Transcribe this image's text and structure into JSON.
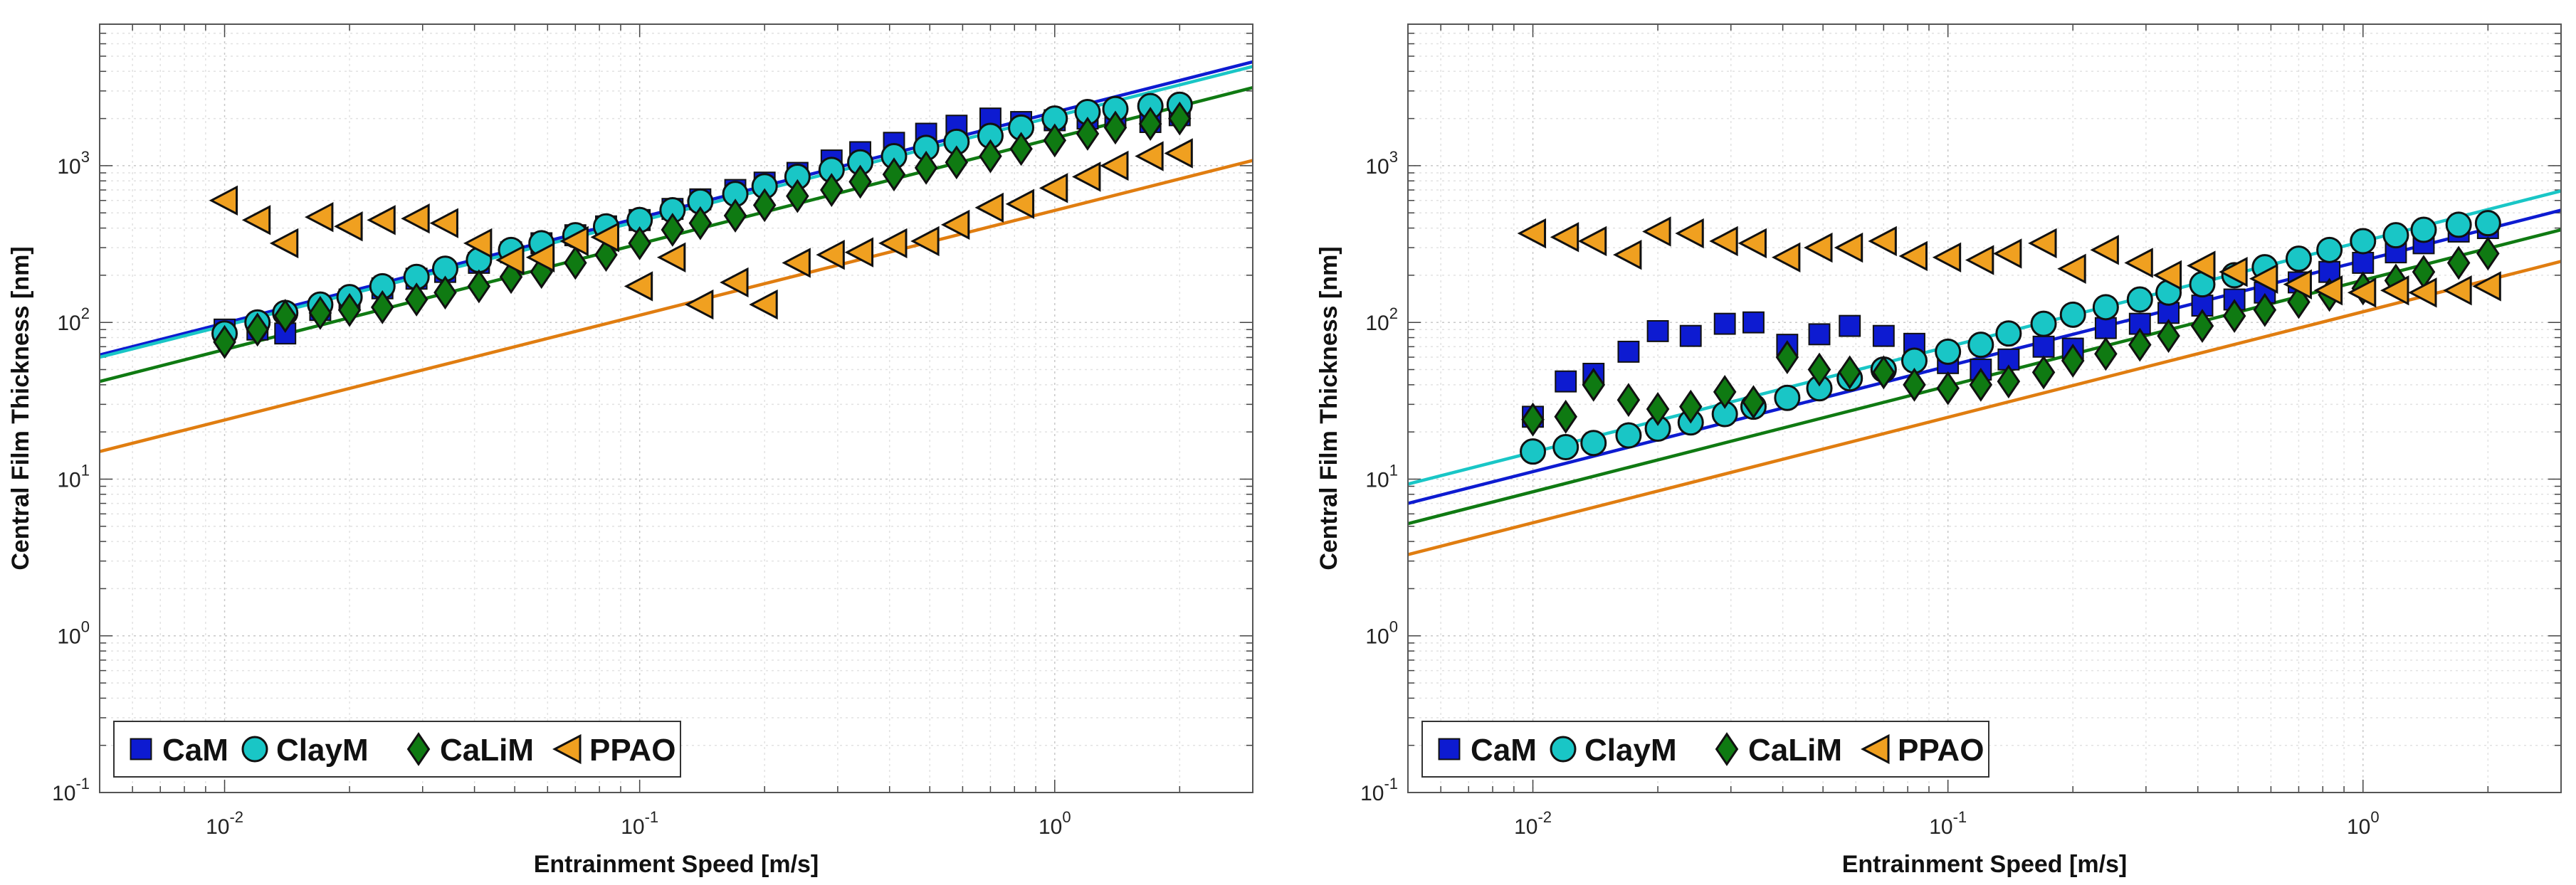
{
  "chart_data": [
    {
      "type": "scatter",
      "xscale": "log",
      "yscale": "log",
      "xlim": [
        0.005,
        3
      ],
      "ylim": [
        0.1,
        8000
      ],
      "xlabel": "Entrainment Speed [m/s]",
      "ylabel": "Central Film Thickness [nm]",
      "xticks": [
        {
          "value": 0.01,
          "base": "10",
          "exp": "-2"
        },
        {
          "value": 0.1,
          "base": "10",
          "exp": "-1"
        },
        {
          "value": 1,
          "base": "10",
          "exp": "0"
        }
      ],
      "yticks": [
        {
          "value": 0.1,
          "base": "10",
          "exp": "-1"
        },
        {
          "value": 1,
          "base": "10",
          "exp": "0"
        },
        {
          "value": 10,
          "base": "10",
          "exp": "1"
        },
        {
          "value": 100,
          "base": "10",
          "exp": "2"
        },
        {
          "value": 1000,
          "base": "10",
          "exp": "3"
        }
      ],
      "legend_position": "bottom-left",
      "series": [
        {
          "name": "CaM",
          "marker": "square",
          "color": "#0d1bd1",
          "x": [
            0.01,
            0.012,
            0.014,
            0.017,
            0.02,
            0.024,
            0.029,
            0.034,
            0.041,
            0.049,
            0.058,
            0.07,
            0.083,
            0.1,
            0.12,
            0.14,
            0.17,
            0.2,
            0.24,
            0.29,
            0.34,
            0.41,
            0.49,
            0.58,
            0.7,
            0.83,
            1.0,
            1.2,
            1.4,
            1.7,
            2.0
          ],
          "y": [
            90,
            90,
            85,
            120,
            140,
            165,
            190,
            210,
            240,
            280,
            320,
            360,
            410,
            450,
            530,
            610,
            700,
            780,
            900,
            1080,
            1220,
            1400,
            1600,
            1800,
            2000,
            1900,
            1950,
            2000,
            2050,
            1900,
            2100
          ]
        },
        {
          "name": "ClayM",
          "marker": "circle",
          "color": "#19c6c6",
          "x": [
            0.01,
            0.012,
            0.014,
            0.017,
            0.02,
            0.024,
            0.029,
            0.034,
            0.041,
            0.049,
            0.058,
            0.07,
            0.083,
            0.1,
            0.12,
            0.14,
            0.17,
            0.2,
            0.24,
            0.29,
            0.34,
            0.41,
            0.49,
            0.58,
            0.7,
            0.83,
            1.0,
            1.2,
            1.4,
            1.7,
            2.0
          ],
          "y": [
            85,
            100,
            115,
            130,
            145,
            170,
            195,
            220,
            250,
            290,
            320,
            360,
            410,
            450,
            520,
            590,
            660,
            740,
            850,
            940,
            1050,
            1150,
            1300,
            1420,
            1550,
            1750,
            2000,
            2200,
            2300,
            2400,
            2450
          ]
        },
        {
          "name": "CaLiM",
          "marker": "diamond",
          "color": "#0f7a12",
          "x": [
            0.01,
            0.012,
            0.014,
            0.017,
            0.02,
            0.024,
            0.029,
            0.034,
            0.041,
            0.049,
            0.058,
            0.07,
            0.083,
            0.1,
            0.12,
            0.14,
            0.17,
            0.2,
            0.24,
            0.29,
            0.34,
            0.41,
            0.49,
            0.58,
            0.7,
            0.83,
            1.0,
            1.2,
            1.4,
            1.7,
            2.0
          ],
          "y": [
            75,
            90,
            110,
            115,
            120,
            125,
            140,
            155,
            170,
            195,
            210,
            240,
            270,
            320,
            390,
            430,
            480,
            560,
            640,
            700,
            790,
            880,
            970,
            1050,
            1150,
            1280,
            1450,
            1600,
            1750,
            1850,
            2000
          ]
        },
        {
          "name": "PPAO",
          "marker": "triangle-left",
          "color": "#f0a020",
          "x": [
            0.01,
            0.012,
            0.014,
            0.017,
            0.02,
            0.024,
            0.029,
            0.034,
            0.041,
            0.049,
            0.058,
            0.07,
            0.083,
            0.1,
            0.12,
            0.14,
            0.17,
            0.2,
            0.24,
            0.29,
            0.34,
            0.41,
            0.49,
            0.58,
            0.7,
            0.83,
            1.0,
            1.2,
            1.4,
            1.7,
            2.0
          ],
          "y": [
            600,
            450,
            320,
            470,
            410,
            450,
            460,
            430,
            320,
            250,
            260,
            330,
            350,
            170,
            260,
            130,
            180,
            130,
            240,
            270,
            280,
            320,
            330,
            420,
            540,
            570,
            720,
            850,
            1000,
            1150,
            1200
          ]
        }
      ],
      "fit_lines": [
        {
          "name": "CaM fit",
          "color": "#0d1bd1",
          "y_at": [
            [
              0.005,
              62
            ],
            [
              3,
              4600
            ]
          ]
        },
        {
          "name": "ClayM fit",
          "color": "#19c6c6",
          "y_at": [
            [
              0.005,
              60
            ],
            [
              3,
              4300
            ]
          ]
        },
        {
          "name": "CaLiM fit",
          "color": "#0f7a12",
          "y_at": [
            [
              0.005,
              42
            ],
            [
              3,
              3150
            ]
          ]
        },
        {
          "name": "PPAO fit",
          "color": "#e07d10",
          "y_at": [
            [
              0.005,
              15
            ],
            [
              3,
              1080
            ]
          ]
        }
      ]
    },
    {
      "type": "scatter",
      "xscale": "log",
      "yscale": "log",
      "xlim": [
        0.005,
        3
      ],
      "ylim": [
        0.1,
        8000
      ],
      "xlabel": "Entrainment Speed [m/s]",
      "ylabel": "Central Film Thickness [nm]",
      "xticks": [
        {
          "value": 0.01,
          "base": "10",
          "exp": "-2"
        },
        {
          "value": 0.1,
          "base": "10",
          "exp": "-1"
        },
        {
          "value": 1,
          "base": "10",
          "exp": "0"
        }
      ],
      "yticks": [
        {
          "value": 0.1,
          "base": "10",
          "exp": "-1"
        },
        {
          "value": 1,
          "base": "10",
          "exp": "0"
        },
        {
          "value": 10,
          "base": "10",
          "exp": "1"
        },
        {
          "value": 100,
          "base": "10",
          "exp": "2"
        },
        {
          "value": 1000,
          "base": "10",
          "exp": "3"
        }
      ],
      "legend_position": "bottom-left",
      "series": [
        {
          "name": "CaM",
          "marker": "square",
          "color": "#0d1bd1",
          "x": [
            0.01,
            0.012,
            0.014,
            0.017,
            0.02,
            0.024,
            0.029,
            0.034,
            0.041,
            0.049,
            0.058,
            0.07,
            0.083,
            0.1,
            0.12,
            0.14,
            0.17,
            0.2,
            0.24,
            0.29,
            0.34,
            0.41,
            0.49,
            0.58,
            0.7,
            0.83,
            1.0,
            1.2,
            1.4,
            1.7,
            2.0
          ],
          "y": [
            25,
            42,
            47,
            65,
            88,
            82,
            98,
            100,
            72,
            84,
            95,
            82,
            73,
            55,
            50,
            58,
            70,
            68,
            92,
            98,
            115,
            128,
            140,
            155,
            180,
            210,
            240,
            280,
            320,
            380,
            400
          ]
        },
        {
          "name": "ClayM",
          "marker": "circle",
          "color": "#19c6c6",
          "x": [
            0.01,
            0.012,
            0.014,
            0.017,
            0.02,
            0.024,
            0.029,
            0.034,
            0.041,
            0.049,
            0.058,
            0.07,
            0.083,
            0.1,
            0.12,
            0.14,
            0.17,
            0.2,
            0.24,
            0.29,
            0.34,
            0.41,
            0.49,
            0.58,
            0.7,
            0.83,
            1.0,
            1.2,
            1.4,
            1.7,
            2.0
          ],
          "y": [
            15,
            16,
            17,
            19,
            21,
            23,
            26,
            29,
            33,
            38,
            44,
            50,
            57,
            65,
            72,
            85,
            98,
            112,
            125,
            140,
            155,
            175,
            200,
            225,
            255,
            290,
            330,
            360,
            390,
            420,
            430
          ]
        },
        {
          "name": "CaLiM",
          "marker": "diamond",
          "color": "#0f7a12",
          "x": [
            0.01,
            0.012,
            0.014,
            0.017,
            0.02,
            0.024,
            0.029,
            0.034,
            0.041,
            0.049,
            0.058,
            0.07,
            0.083,
            0.1,
            0.12,
            0.14,
            0.17,
            0.2,
            0.24,
            0.29,
            0.34,
            0.41,
            0.49,
            0.58,
            0.7,
            0.83,
            1.0,
            1.2,
            1.4,
            1.7,
            2.0
          ],
          "y": [
            24,
            25,
            40,
            32,
            28,
            29,
            36,
            31,
            60,
            50,
            48,
            48,
            40,
            38,
            40,
            42,
            48,
            57,
            63,
            72,
            82,
            95,
            110,
            120,
            135,
            150,
            165,
            185,
            210,
            240,
            275
          ]
        },
        {
          "name": "PPAO",
          "marker": "triangle-left",
          "color": "#f0a020",
          "x": [
            0.01,
            0.012,
            0.014,
            0.017,
            0.02,
            0.024,
            0.029,
            0.034,
            0.041,
            0.049,
            0.058,
            0.07,
            0.083,
            0.1,
            0.12,
            0.14,
            0.17,
            0.2,
            0.24,
            0.29,
            0.34,
            0.41,
            0.49,
            0.58,
            0.7,
            0.83,
            1.0,
            1.2,
            1.4,
            1.7,
            2.0
          ],
          "y": [
            370,
            350,
            330,
            270,
            380,
            370,
            330,
            320,
            260,
            300,
            300,
            330,
            265,
            260,
            250,
            275,
            320,
            220,
            290,
            240,
            200,
            230,
            210,
            190,
            175,
            160,
            155,
            160,
            155,
            160,
            170
          ]
        }
      ],
      "fit_lines": [
        {
          "name": "CaM fit",
          "color": "#0d1bd1",
          "y_at": [
            [
              0.005,
              7
            ],
            [
              3,
              520
            ]
          ]
        },
        {
          "name": "ClayM fit",
          "color": "#19c6c6",
          "y_at": [
            [
              0.005,
              9.3
            ],
            [
              3,
              690
            ]
          ]
        },
        {
          "name": "CaLiM fit",
          "color": "#0f7a12",
          "y_at": [
            [
              0.005,
              5.2
            ],
            [
              3,
              390
            ]
          ]
        },
        {
          "name": "PPAO fit",
          "color": "#e07d10",
          "y_at": [
            [
              0.005,
              3.3
            ],
            [
              3,
              245
            ]
          ]
        }
      ]
    }
  ]
}
